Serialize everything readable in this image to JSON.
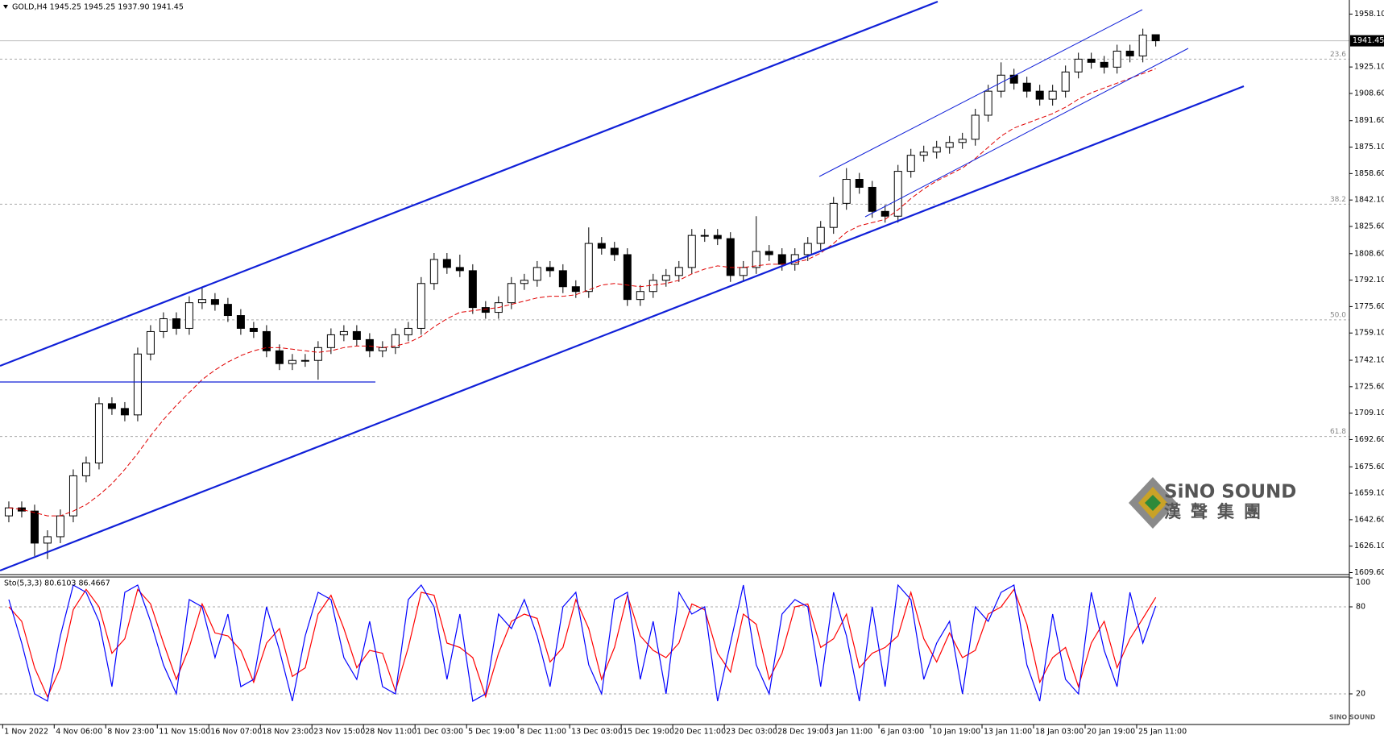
{
  "chart_data": [
    {
      "type": "candlestick",
      "title": "GOLD,H4  1945.25 1945.25 1937.90 1941.45",
      "categories": [
        "1 Nov 2022",
        null,
        null,
        null,
        "4 Nov 06:00",
        null,
        null,
        null,
        "8 Nov 23:00",
        null,
        null,
        null,
        "11 Nov 15:00",
        null,
        null,
        null,
        "16 Nov 07:00",
        null,
        null,
        null,
        "18 Nov 23:00",
        null,
        null,
        null,
        "23 Nov 15:00",
        null,
        null,
        null,
        "28 Nov 11:00",
        null,
        null,
        null,
        "1 Dec 03:00",
        null,
        null,
        null,
        "5 Dec 19:00",
        null,
        null,
        null,
        "8 Dec 11:00",
        null,
        null,
        null,
        "13 Dec 03:00",
        null,
        null,
        null,
        "15 Dec 19:00",
        null,
        null,
        null,
        "20 Dec 11:00",
        null,
        null,
        null,
        "23 Dec 03:00",
        null,
        null,
        null,
        "28 Dec 19:00",
        null,
        null,
        null,
        "3 Jan 11:00",
        null,
        null,
        null,
        "6 Jan 03:00",
        null,
        null,
        null,
        "10 Jan 19:00",
        null,
        null,
        null,
        "13 Jan 11:00",
        null,
        null,
        null,
        "18 Jan 03:00",
        null,
        null,
        null,
        "20 Jan 19:00",
        null,
        null,
        null,
        "25 Jan 11:00",
        null
      ],
      "open": [
        1645,
        1650,
        1648,
        1628,
        1632,
        1645,
        1670,
        1678,
        1715,
        1712,
        1708,
        1746,
        1760,
        1768,
        1762,
        1778,
        1780,
        1777,
        1770,
        1762,
        1760,
        1748,
        1740,
        1742,
        1742,
        1750,
        1758,
        1760,
        1755,
        1748,
        1750,
        1758,
        1762,
        1790,
        1805,
        1800,
        1798,
        1775,
        1772,
        1778,
        1790,
        1792,
        1800,
        1798,
        1788,
        1785,
        1815,
        1812,
        1808,
        1780,
        1785,
        1792,
        1795,
        1800,
        1820,
        1820,
        1818,
        1795,
        1800,
        1810,
        1808,
        1802,
        1808,
        1815,
        1825,
        1840,
        1855,
        1850,
        1835,
        1832,
        1860,
        1870,
        1872,
        1875,
        1878,
        1880,
        1895,
        1910,
        1920,
        1915,
        1910,
        1905,
        1910,
        1922,
        1930,
        1928,
        1925,
        1935,
        1932,
        1945.25
      ],
      "high": [
        1654,
        1654,
        1652,
        1636,
        1649,
        1674,
        1682,
        1719,
        1719,
        1716,
        1750,
        1764,
        1772,
        1772,
        1782,
        1788,
        1784,
        1781,
        1774,
        1766,
        1764,
        1752,
        1746,
        1746,
        1754,
        1762,
        1764,
        1764,
        1759,
        1754,
        1762,
        1766,
        1794,
        1809,
        1809,
        1808,
        1802,
        1779,
        1782,
        1794,
        1796,
        1804,
        1804,
        1802,
        1792,
        1825,
        1819,
        1816,
        1812,
        1789,
        1796,
        1799,
        1804,
        1824,
        1824,
        1824,
        1822,
        1804,
        1832,
        1814,
        1812,
        1812,
        1819,
        1829,
        1844,
        1862,
        1859,
        1854,
        1839,
        1864,
        1874,
        1876,
        1879,
        1882,
        1884,
        1899,
        1914,
        1928,
        1924,
        1919,
        1914,
        1914,
        1926,
        1934,
        1934,
        1932,
        1939,
        1939,
        1949,
        1945.25
      ],
      "low": [
        1641,
        1644,
        1620,
        1618,
        1628,
        1641,
        1666,
        1674,
        1708,
        1704,
        1704,
        1742,
        1756,
        1758,
        1758,
        1774,
        1773,
        1766,
        1758,
        1756,
        1744,
        1736,
        1736,
        1738,
        1730,
        1746,
        1754,
        1751,
        1744,
        1744,
        1746,
        1754,
        1758,
        1786,
        1796,
        1794,
        1771,
        1768,
        1768,
        1774,
        1786,
        1788,
        1794,
        1784,
        1781,
        1781,
        1808,
        1804,
        1776,
        1776,
        1781,
        1788,
        1791,
        1796,
        1816,
        1814,
        1791,
        1791,
        1796,
        1804,
        1798,
        1798,
        1804,
        1811,
        1821,
        1836,
        1846,
        1831,
        1828,
        1828,
        1856,
        1866,
        1868,
        1871,
        1874,
        1876,
        1891,
        1906,
        1911,
        1906,
        1901,
        1901,
        1906,
        1918,
        1924,
        1921,
        1921,
        1928,
        1928,
        1937.9
      ],
      "close": [
        1650,
        1648,
        1628,
        1632,
        1645,
        1670,
        1678,
        1715,
        1712,
        1708,
        1746,
        1760,
        1768,
        1762,
        1778,
        1780,
        1777,
        1770,
        1762,
        1760,
        1748,
        1740,
        1742,
        1742,
        1750,
        1758,
        1760,
        1755,
        1748,
        1750,
        1758,
        1762,
        1790,
        1805,
        1800,
        1798,
        1775,
        1772,
        1778,
        1790,
        1792,
        1800,
        1798,
        1788,
        1785,
        1815,
        1812,
        1808,
        1780,
        1785,
        1792,
        1795,
        1800,
        1820,
        1820,
        1818,
        1795,
        1800,
        1810,
        1808,
        1802,
        1808,
        1815,
        1825,
        1840,
        1855,
        1850,
        1835,
        1832,
        1860,
        1870,
        1872,
        1875,
        1878,
        1880,
        1895,
        1910,
        1920,
        1915,
        1910,
        1905,
        1910,
        1922,
        1930,
        1928,
        1925,
        1935,
        1932,
        1945,
        1941.45
      ],
      "ma": {
        "color": "#e00000",
        "values": [
          1650,
          1649,
          1647,
          1645,
          1645,
          1648,
          1652,
          1658,
          1665,
          1674,
          1684,
          1695,
          1705,
          1714,
          1722,
          1730,
          1736,
          1741,
          1745,
          1748,
          1750,
          1750,
          1749,
          1748,
          1747,
          1748,
          1750,
          1751,
          1751,
          1750,
          1751,
          1753,
          1757,
          1763,
          1768,
          1772,
          1773,
          1774,
          1775,
          1777,
          1779,
          1781,
          1782,
          1782,
          1783,
          1786,
          1789,
          1790,
          1789,
          1788,
          1789,
          1790,
          1792,
          1796,
          1799,
          1801,
          1800,
          1800,
          1801,
          1802,
          1802,
          1803,
          1805,
          1809,
          1815,
          1822,
          1826,
          1828,
          1830,
          1836,
          1843,
          1849,
          1854,
          1858,
          1862,
          1868,
          1875,
          1882,
          1887,
          1890,
          1893,
          1896,
          1900,
          1905,
          1909,
          1912,
          1915,
          1918,
          1921,
          1924
        ]
      },
      "fib_levels": [
        {
          "value": 1930.0,
          "label": "23.6"
        },
        {
          "value": 1839.5,
          "label": "38.2"
        },
        {
          "value": 1767.3,
          "label": "50.0"
        },
        {
          "value": 1694.5,
          "label": "61.8"
        }
      ],
      "ylim": [
        1608.5,
        1966.9
      ],
      "yticks": [
        {
          "value": 1958.1,
          "label": "1958.10"
        },
        {
          "value": 1925.1,
          "label": "1925.10"
        },
        {
          "value": 1908.6,
          "label": "1908.60"
        },
        {
          "value": 1891.6,
          "label": "1891.60"
        },
        {
          "value": 1875.1,
          "label": "1875.10"
        },
        {
          "value": 1858.6,
          "label": "1858.60"
        },
        {
          "value": 1842.1,
          "label": "1842.10"
        },
        {
          "value": 1825.6,
          "label": "1825.60"
        },
        {
          "value": 1808.6,
          "label": "1808.60"
        },
        {
          "value": 1792.1,
          "label": "1792.10"
        },
        {
          "value": 1775.6,
          "label": "1775.60"
        },
        {
          "value": 1759.1,
          "label": "1759.10"
        },
        {
          "value": 1742.1,
          "label": "1742.10"
        },
        {
          "value": 1725.6,
          "label": "1725.60"
        },
        {
          "value": 1709.1,
          "label": "1709.10"
        },
        {
          "value": 1692.6,
          "label": "1692.60"
        },
        {
          "value": 1675.6,
          "label": "1675.60"
        },
        {
          "value": 1659.1,
          "label": "1659.10"
        },
        {
          "value": 1642.6,
          "label": "1642.60"
        },
        {
          "value": 1626.1,
          "label": "1626.10"
        },
        {
          "value": 1609.6,
          "label": "1609.60"
        }
      ]
    },
    {
      "type": "line",
      "title": "Sto(5,3,3) 80.6103 86.4667",
      "series": [
        {
          "color": "#0000ff",
          "values": [
            85,
            55,
            20,
            15,
            60,
            95,
            90,
            70,
            25,
            90,
            95,
            70,
            40,
            20,
            85,
            80,
            45,
            75,
            25,
            30,
            80,
            50,
            15,
            60,
            90,
            85,
            45,
            30,
            70,
            25,
            20,
            85,
            95,
            80,
            30,
            75,
            15,
            20,
            75,
            65,
            85,
            60,
            25,
            80,
            90,
            40,
            20,
            85,
            90,
            30,
            70,
            20,
            90,
            75,
            80,
            15,
            55,
            95,
            40,
            20,
            75,
            85,
            80,
            25,
            90,
            60,
            15,
            80,
            25,
            95,
            85,
            30,
            55,
            70,
            20,
            80,
            70,
            90,
            95,
            40,
            15,
            75,
            30,
            20,
            90,
            50,
            25,
            90,
            55,
            80.6103
          ]
        },
        {
          "color": "#ff0000",
          "values": [
            80,
            70,
            38,
            18,
            38,
            78,
            92,
            80,
            48,
            58,
            92,
            82,
            55,
            30,
            52,
            82,
            62,
            60,
            50,
            28,
            55,
            65,
            32,
            38,
            75,
            88,
            65,
            38,
            50,
            48,
            22,
            52,
            90,
            88,
            55,
            52,
            45,
            18,
            48,
            70,
            75,
            72,
            42,
            52,
            85,
            65,
            30,
            52,
            88,
            60,
            50,
            45,
            55,
            82,
            78,
            48,
            35,
            75,
            68,
            30,
            48,
            80,
            82,
            52,
            58,
            75,
            38,
            48,
            52,
            60,
            90,
            58,
            42,
            62,
            45,
            50,
            75,
            80,
            92,
            68,
            28,
            45,
            52,
            25,
            55,
            70,
            38,
            58,
            72,
            86.4667
          ]
        }
      ],
      "ylim": [
        0,
        100
      ],
      "yticks": [
        100,
        80,
        20
      ]
    }
  ],
  "logo": {
    "name": "SiNO SOUND",
    "chinese": "漢聲集團",
    "small": "SINO SOUND"
  }
}
